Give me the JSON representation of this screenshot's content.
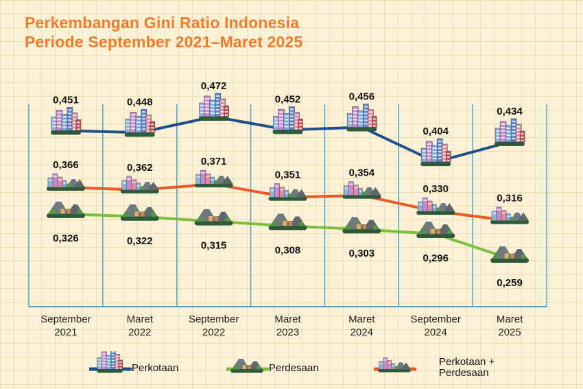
{
  "title_line1": "Perkembangan Gini Ratio Indonesia",
  "title_line2": "Periode September 2021–Maret 2025",
  "colors": {
    "perkotaan": "#1e4f8c",
    "perdesaan": "#7cbf3c",
    "gabungan": "#ea5a25",
    "title": "#ee7d2b",
    "axis": "#4aa7c7"
  },
  "chart_data": {
    "type": "line",
    "title": "Perkembangan Gini Ratio Indonesia Periode September 2021–Maret 2025",
    "categories": [
      [
        "September",
        "2021"
      ],
      [
        "Maret",
        "2022"
      ],
      [
        "September",
        "2022"
      ],
      [
        "Maret",
        "2023"
      ],
      [
        "Maret",
        "2024"
      ],
      [
        "September",
        "2024"
      ],
      [
        "Maret",
        "2025"
      ]
    ],
    "series": [
      {
        "name": "Perkotaan",
        "icon": "city-buildings-icon",
        "color": "#1e4f8c",
        "values": [
          0.451,
          0.448,
          0.472,
          0.452,
          0.456,
          0.404,
          0.434
        ],
        "labels": [
          "0,451",
          "0,448",
          "0,472",
          "0,452",
          "0,456",
          "0,404",
          "0,434"
        ]
      },
      {
        "name": "Perkotaan + Perdesaan",
        "icon": "city-and-mountain-icon",
        "color": "#ea5a25",
        "values": [
          0.366,
          0.362,
          0.371,
          0.351,
          0.354,
          0.33,
          0.316
        ],
        "labels": [
          "0,366",
          "0,362",
          "0,371",
          "0,351",
          "0,354",
          "0,330",
          "0,316"
        ]
      },
      {
        "name": "Perdesaan",
        "icon": "mountain-village-icon",
        "color": "#7cbf3c",
        "values": [
          0.326,
          0.322,
          0.315,
          0.308,
          0.303,
          0.296,
          0.259
        ],
        "labels": [
          "0,326",
          "0,322",
          "0,315",
          "0,308",
          "0,303",
          "0,296",
          "0,259"
        ]
      }
    ],
    "grid": false,
    "legend": "bottom"
  },
  "legend": [
    {
      "label": "Perkotaan",
      "icon": "city-buildings-icon",
      "color": "#1e4f8c"
    },
    {
      "label": "Perdesaan",
      "icon": "mountain-village-icon",
      "color": "#7cbf3c"
    },
    {
      "label": "Perkotaan +\nPerdesaan",
      "icon": "city-and-mountain-icon",
      "color": "#ea5a25"
    }
  ]
}
